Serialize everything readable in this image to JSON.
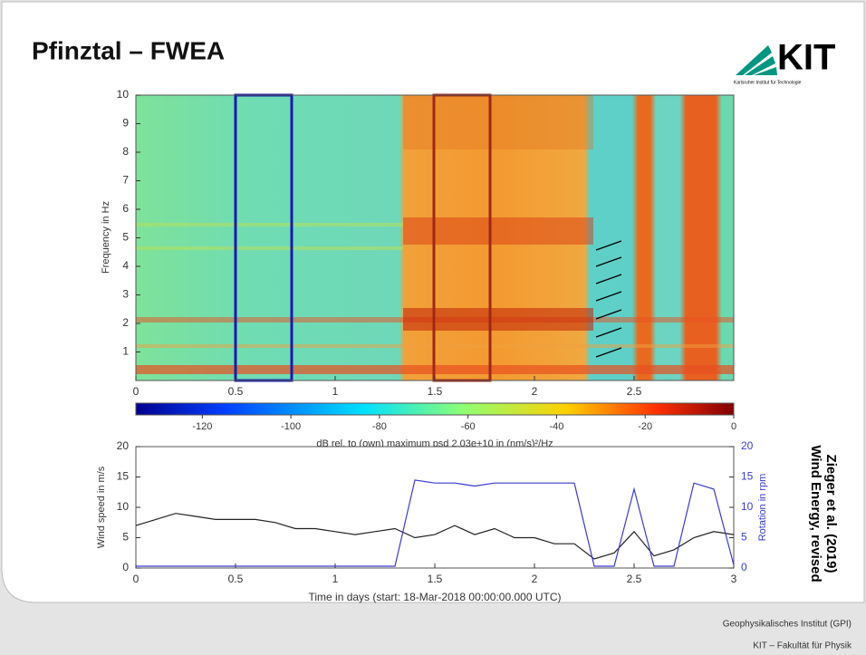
{
  "header": {
    "title": "Pfinztal – FWEA",
    "logo": "KIT",
    "logo_subtitle": "Karlsruher Institut für Technologie"
  },
  "chart_data": [
    {
      "type": "spectrogram",
      "ylabel": "Frequency in Hz",
      "xlim": [
        0,
        3
      ],
      "xticks": [
        0,
        0.5,
        1,
        1.5,
        2,
        2.5
      ],
      "ylim": [
        0,
        10
      ],
      "yticks": [
        1,
        2,
        3,
        4,
        5,
        6,
        7,
        8,
        9,
        10
      ],
      "colorbar": {
        "label": "dB rel. to (own) maximum psd 2.03e+10 in (nm/s)²/Hz",
        "lim": [
          -135,
          0
        ],
        "ticks": [
          -120,
          -100,
          -80,
          -60,
          -40,
          -20,
          0
        ]
      }
    },
    {
      "type": "line",
      "xlabel": "Time in days (start: 18-Mar-2018 00:00:00.000 UTC)",
      "ylabel": "Wind speed in m/s",
      "y2label": "Rotation in rpm",
      "xlim": [
        0,
        3
      ],
      "xticks": [
        0,
        0.5,
        1,
        1.5,
        2,
        2.5,
        3
      ],
      "ylim": [
        0,
        20
      ],
      "yticks": [
        0,
        5,
        10,
        15,
        20
      ],
      "y2lim": [
        0,
        20
      ],
      "y2ticks": [
        0,
        5,
        10,
        15,
        20
      ],
      "x": [
        0,
        0.1,
        0.2,
        0.3,
        0.4,
        0.5,
        0.6,
        0.7,
        0.8,
        0.9,
        1.0,
        1.1,
        1.2,
        1.3,
        1.4,
        1.5,
        1.6,
        1.7,
        1.8,
        1.9,
        2.0,
        2.1,
        2.2,
        2.3,
        2.4,
        2.5,
        2.6,
        2.7,
        2.8,
        2.9,
        3.0
      ],
      "series": [
        {
          "color": "#222222",
          "values": [
            7,
            8,
            9,
            8.5,
            8,
            8,
            8,
            7.5,
            6.5,
            6.5,
            6,
            5.5,
            6,
            6.5,
            5,
            5.5,
            7,
            5.5,
            6.5,
            5,
            5,
            4,
            4,
            1.5,
            2.5,
            6,
            2,
            3,
            5,
            6,
            5.5
          ]
        },
        {
          "color": "#3a3ad0",
          "axis": "y2",
          "values": [
            0.3,
            0.3,
            0.3,
            0.3,
            0.3,
            0.3,
            0.3,
            0.3,
            0.3,
            0.3,
            0.3,
            0.3,
            0.3,
            0.3,
            14.5,
            14,
            14,
            13.5,
            14,
            14,
            14,
            14,
            14,
            0.3,
            0.3,
            13,
            0.3,
            0.3,
            14,
            13,
            0.5
          ]
        }
      ]
    }
  ],
  "citation": [
    "Zieger et al. (2019)",
    "Wind Energy, revised"
  ],
  "footer": [
    "Geophysikalisches Institut (GPI)",
    "KIT – Fakultät für Physik"
  ]
}
